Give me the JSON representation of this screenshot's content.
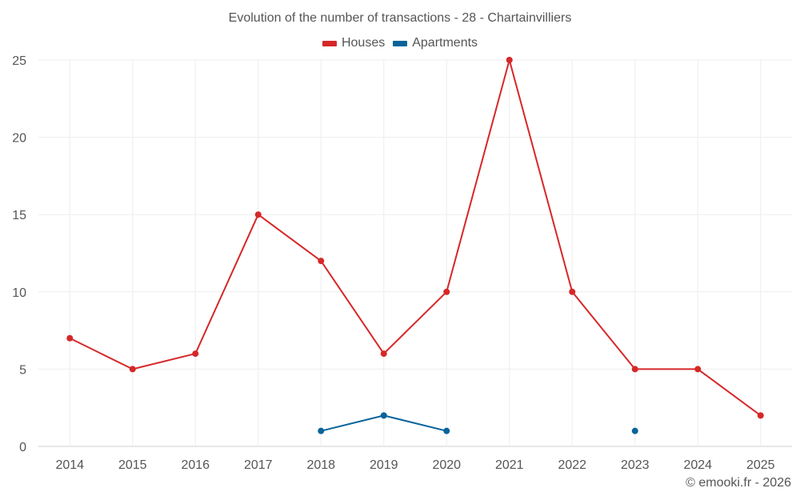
{
  "chart_data": {
    "type": "line",
    "title": "Evolution of the number of transactions - 28 - Chartainvilliers",
    "categories": [
      "2014",
      "2015",
      "2016",
      "2017",
      "2018",
      "2019",
      "2020",
      "2021",
      "2022",
      "2023",
      "2024",
      "2025"
    ],
    "ylim": [
      0,
      25
    ],
    "yticks": [
      0,
      5,
      10,
      15,
      20,
      25
    ],
    "series": [
      {
        "name": "Houses",
        "color": "#d62728",
        "values": [
          7,
          5,
          6,
          15,
          12,
          6,
          10,
          25,
          10,
          5,
          5,
          2
        ]
      },
      {
        "name": "Apartments",
        "color": "#08649a",
        "values": [
          null,
          null,
          null,
          null,
          1,
          2,
          1,
          null,
          null,
          1,
          null,
          null
        ]
      }
    ],
    "legend_position": "top-center",
    "grid": true
  },
  "credit": "© emooki.fr - 2026"
}
